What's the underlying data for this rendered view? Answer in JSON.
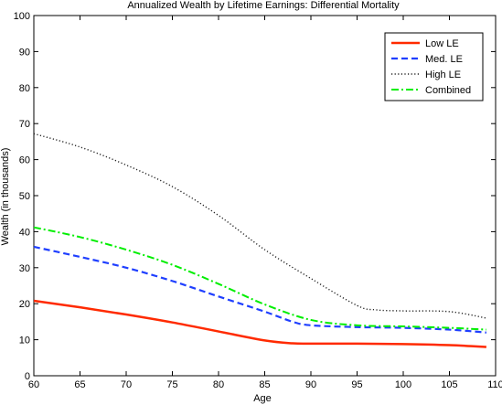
{
  "chart_data": {
    "type": "line",
    "title": "Annualized Wealth by Lifetime Earnings: Differential Mortality",
    "xlabel": "Age",
    "ylabel": "Wealth (in thousands)",
    "xlim": [
      60,
      110
    ],
    "ylim": [
      0,
      100
    ],
    "xticks": [
      60,
      65,
      70,
      75,
      80,
      85,
      90,
      95,
      100,
      105,
      110
    ],
    "yticks": [
      0,
      10,
      20,
      30,
      40,
      50,
      60,
      70,
      80,
      90,
      100
    ],
    "grid": false,
    "legend_position": "top-right",
    "series": [
      {
        "name": "Low LE",
        "color": "#ff2a00",
        "dash": "solid",
        "x": [
          60,
          65,
          70,
          75,
          80,
          85,
          88,
          90,
          95,
          100,
          105,
          109
        ],
        "values": [
          20.8,
          19.0,
          17.0,
          14.8,
          12.3,
          9.8,
          9.0,
          8.9,
          8.9,
          8.8,
          8.5,
          8.0
        ]
      },
      {
        "name": "Med. LE",
        "color": "#1f3fff",
        "dash": "dashed",
        "x": [
          60,
          65,
          70,
          75,
          80,
          85,
          88,
          90,
          95,
          100,
          105,
          109
        ],
        "values": [
          35.8,
          33.0,
          30.0,
          26.3,
          22.0,
          17.8,
          15.0,
          14.0,
          13.5,
          13.3,
          12.8,
          12.0
        ]
      },
      {
        "name": "High LE",
        "color": "#222222",
        "dash": "dotted",
        "x": [
          60,
          65,
          70,
          75,
          80,
          85,
          90,
          95,
          97,
          100,
          105,
          109
        ],
        "values": [
          67.2,
          63.5,
          58.5,
          52.5,
          44.5,
          35.0,
          27.0,
          19.5,
          18.3,
          18.0,
          17.8,
          16.0
        ]
      },
      {
        "name": "Combined",
        "color": "#00ee00",
        "dash": "dashdot",
        "x": [
          60,
          65,
          70,
          75,
          80,
          85,
          90,
          95,
          100,
          105,
          109
        ],
        "values": [
          41.2,
          38.5,
          35.0,
          30.8,
          25.5,
          19.8,
          15.5,
          14.0,
          13.7,
          13.3,
          12.8
        ]
      }
    ]
  }
}
